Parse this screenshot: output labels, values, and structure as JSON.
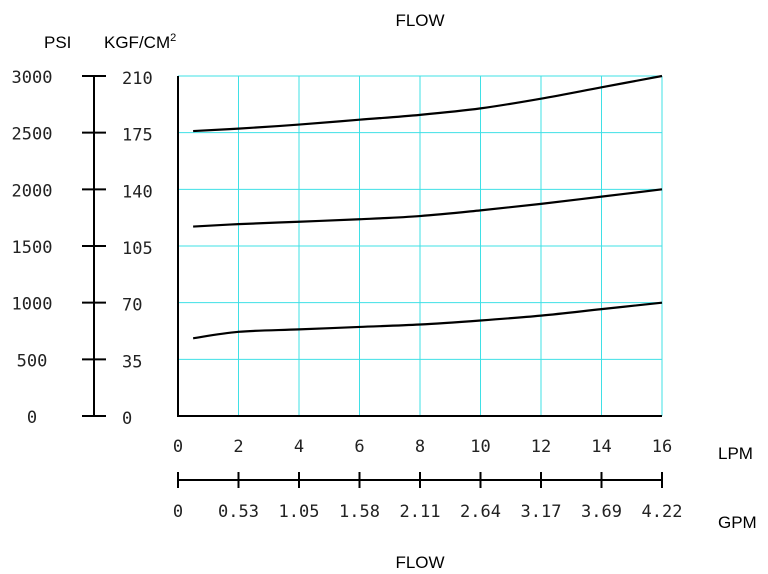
{
  "chart_data": {
    "type": "line",
    "title": "FLOW",
    "bottom_title": "FLOW",
    "y_units": [
      "PSI",
      "KGF/CM"
    ],
    "y_units_superscript": "2",
    "x_units": [
      "LPM",
      "GPM"
    ],
    "psi_ticks": [
      "3000",
      "2500",
      "2000",
      "1500",
      "1000",
      "500",
      "0"
    ],
    "kgf_ticks": [
      "210",
      "175",
      "140",
      "105",
      "70",
      "35",
      "0"
    ],
    "lpm_ticks": [
      "0",
      "2",
      "4",
      "6",
      "8",
      "10",
      "12",
      "14",
      "16"
    ],
    "gpm_ticks": [
      "0",
      "0.53",
      "1.05",
      "1.58",
      "2.11",
      "2.64",
      "3.17",
      "3.69",
      "4.22"
    ],
    "xlim": [
      0,
      16
    ],
    "ylim_psi": [
      0,
      3000
    ],
    "ylim_kgf": [
      0,
      210
    ],
    "grid": true,
    "series": [
      {
        "x": [
          0.5,
          2,
          4,
          6,
          8,
          10,
          12,
          14,
          16
        ],
        "y_kgf": [
          176,
          177.5,
          180,
          183,
          186,
          190,
          196,
          203,
          210
        ]
      },
      {
        "x": [
          0.5,
          2,
          4,
          6,
          8,
          10,
          12,
          14,
          16
        ],
        "y_kgf": [
          117,
          118.5,
          120,
          121.5,
          123.5,
          127,
          131,
          135.5,
          140
        ]
      },
      {
        "x": [
          0.5,
          2,
          4,
          6,
          8,
          10,
          12,
          14,
          16
        ],
        "y_kgf": [
          48,
          52,
          53.5,
          55,
          56.5,
          59,
          62,
          66,
          70
        ]
      }
    ]
  }
}
